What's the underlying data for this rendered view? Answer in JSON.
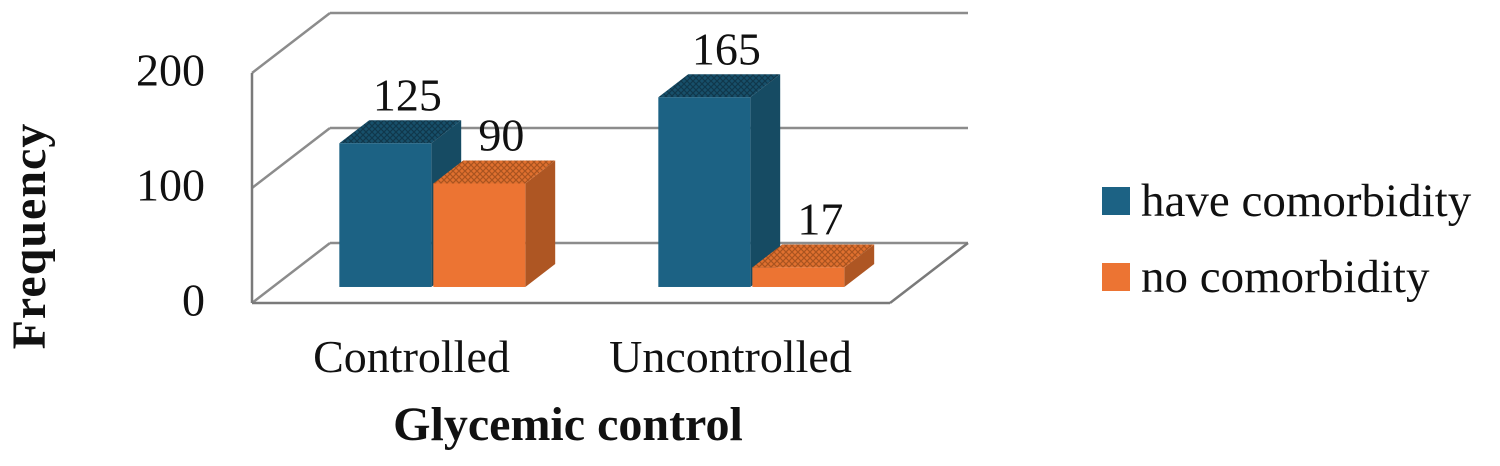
{
  "figure": {
    "background": "#ffffff",
    "text_color": "#111111",
    "gridline_color": "#8C8C8C",
    "axis_line_color": "#7A7A7A"
  },
  "chart_data": {
    "type": "bar",
    "projection": "3d-column",
    "title": "",
    "xlabel": "Glycemic control",
    "ylabel": "Frequency",
    "categories": [
      "Controlled",
      "Uncontrolled"
    ],
    "series": [
      {
        "name": "have comorbidity",
        "values": [
          125,
          165
        ],
        "data_labels": [
          "125",
          "165"
        ],
        "front_color": "#1C6284",
        "side_color": "#164B63",
        "top_color": "#17506B",
        "top_hatch_color": "#10374B"
      },
      {
        "name": "no comorbidity",
        "values": [
          90,
          17
        ],
        "data_labels": [
          "90",
          "17"
        ],
        "front_color": "#EC7433",
        "side_color": "#AE5623",
        "top_color": "#E0702F",
        "top_hatch_color": "#A9531F"
      }
    ],
    "ylim": [
      0,
      200
    ],
    "yticks": [
      0,
      100,
      200
    ],
    "ytick_labels": [
      "0",
      "100",
      "200"
    ],
    "grid": true,
    "legend_position": "right"
  }
}
